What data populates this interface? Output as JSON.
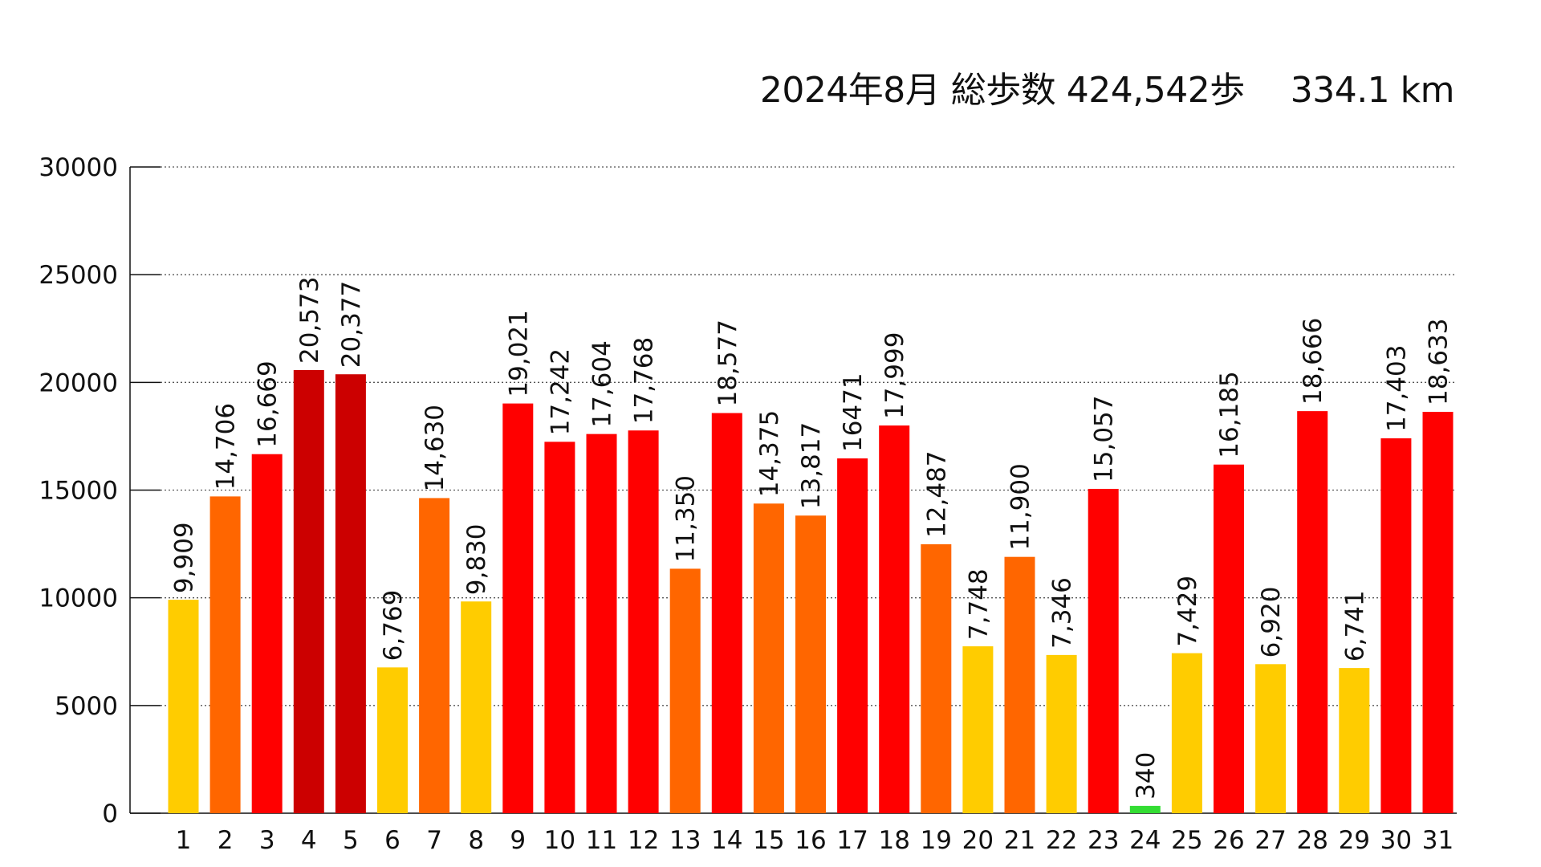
{
  "chart_data": {
    "type": "bar",
    "title": "2024年8月 総歩数 424,542歩　 334.1 km",
    "xlabel": "",
    "ylabel": "",
    "ylim": [
      0,
      30000
    ],
    "yticks": [
      0,
      5000,
      10000,
      15000,
      20000,
      25000,
      30000
    ],
    "grid": "horizontal dotted",
    "categories": [
      "1",
      "2",
      "3",
      "4",
      "5",
      "6",
      "7",
      "8",
      "9",
      "10",
      "11",
      "12",
      "13",
      "14",
      "15",
      "16",
      "17",
      "18",
      "19",
      "20",
      "21",
      "22",
      "23",
      "24",
      "25",
      "26",
      "27",
      "28",
      "29",
      "30",
      "31"
    ],
    "values": [
      9909,
      14706,
      16669,
      20573,
      20377,
      6769,
      14630,
      9830,
      19021,
      17242,
      17604,
      17768,
      11350,
      18577,
      14375,
      13817,
      16471,
      17999,
      12487,
      7748,
      11900,
      7346,
      15057,
      340,
      7429,
      16185,
      6920,
      18666,
      6741,
      17403,
      18633
    ],
    "labels": [
      "9,909",
      "14,706",
      "16,669",
      "20,573",
      "20,377",
      "6,769",
      "14,630",
      "9,830",
      "19,021",
      "17,242",
      "17,604",
      "17,768",
      "11,350",
      "18,577",
      "14,375",
      "13,817",
      "16471",
      "17,999",
      "12,487",
      "7,748",
      "11,900",
      "7,346",
      "15,057",
      "340",
      "7,429",
      "16,185",
      "6,920",
      "18,666",
      "6,741",
      "17,403",
      "18,633"
    ],
    "colors": [
      "#FFCC00",
      "#FF6600",
      "#FF0000",
      "#CC0000",
      "#CC0000",
      "#FFCC00",
      "#FF6600",
      "#FFCC00",
      "#FF0000",
      "#FF0000",
      "#FF0000",
      "#FF0000",
      "#FF6600",
      "#FF0000",
      "#FF6600",
      "#FF6600",
      "#FF0000",
      "#FF0000",
      "#FF6600",
      "#FFCC00",
      "#FF6600",
      "#FFCC00",
      "#FF0000",
      "#33DD33",
      "#FFCC00",
      "#FF0000",
      "#FFCC00",
      "#FF0000",
      "#FFCC00",
      "#FF0000",
      "#FF0000"
    ]
  }
}
